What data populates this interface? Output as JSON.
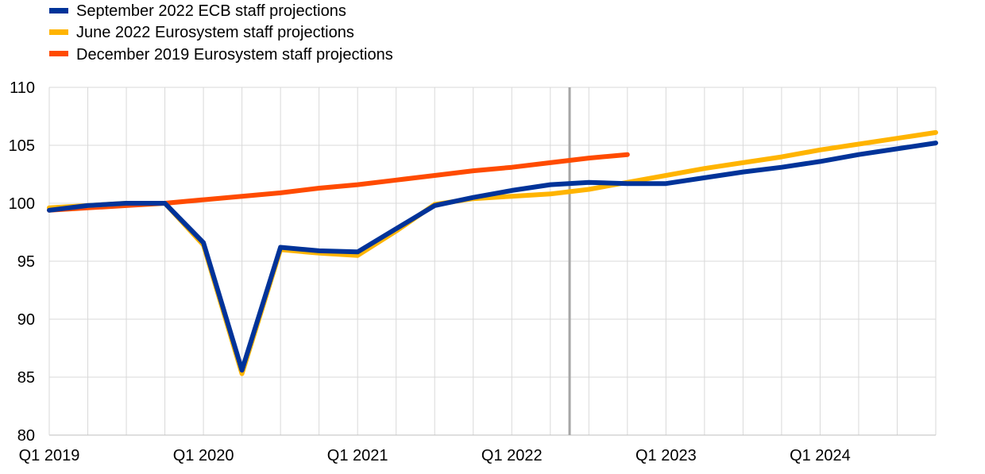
{
  "chart_data": {
    "type": "line",
    "title": "",
    "xlabel": "",
    "ylabel": "",
    "ylim": [
      80,
      110
    ],
    "yticks": [
      "80",
      "85",
      "90",
      "95",
      "100",
      "105",
      "110"
    ],
    "x": [
      "Q1 2019",
      "Q2 2019",
      "Q3 2019",
      "Q4 2019",
      "Q1 2020",
      "Q2 2020",
      "Q3 2020",
      "Q4 2020",
      "Q1 2021",
      "Q2 2021",
      "Q3 2021",
      "Q4 2021",
      "Q1 2022",
      "Q2 2022",
      "Q3 2022",
      "Q4 2022",
      "Q1 2023",
      "Q2 2023",
      "Q3 2023",
      "Q4 2023",
      "Q1 2024",
      "Q2 2024",
      "Q3 2024",
      "Q4 2024"
    ],
    "xtick_labels": [
      "Q1 2019",
      "Q1 2020",
      "Q1 2021",
      "Q1 2022",
      "Q1 2023",
      "Q1 2024"
    ],
    "grid": true,
    "legend_position": "top-left",
    "vertical_marker": {
      "between": [
        "Q2 2022",
        "Q3 2022"
      ],
      "color": "#a6a6a6"
    },
    "series": [
      {
        "name": "September 2022 ECB staff projections",
        "color": "#003399",
        "values": [
          99.4,
          99.8,
          100.0,
          100.0,
          96.6,
          85.6,
          96.2,
          95.9,
          95.8,
          97.8,
          99.8,
          100.5,
          101.1,
          101.6,
          101.8,
          101.7,
          101.7,
          102.2,
          102.7,
          103.1,
          103.6,
          104.2,
          104.7,
          105.2
        ]
      },
      {
        "name": "June 2022 Eurosystem staff projections",
        "color": "#ffb400",
        "values": [
          99.6,
          99.8,
          100.0,
          100.0,
          96.4,
          85.3,
          96.0,
          95.7,
          95.5,
          97.6,
          99.9,
          100.4,
          100.6,
          100.8,
          101.2,
          101.8,
          102.4,
          103.0,
          103.5,
          104.0,
          104.6,
          105.1,
          105.6,
          106.1
        ]
      },
      {
        "name": "December 2019 Eurosystem staff projections",
        "color": "#ff4b00",
        "values": [
          99.4,
          99.6,
          99.8,
          100.0,
          100.3,
          100.6,
          100.9,
          101.3,
          101.6,
          102.0,
          102.4,
          102.8,
          103.1,
          103.5,
          103.9,
          104.2,
          null,
          null,
          null,
          null,
          null,
          null,
          null,
          null
        ]
      }
    ]
  }
}
